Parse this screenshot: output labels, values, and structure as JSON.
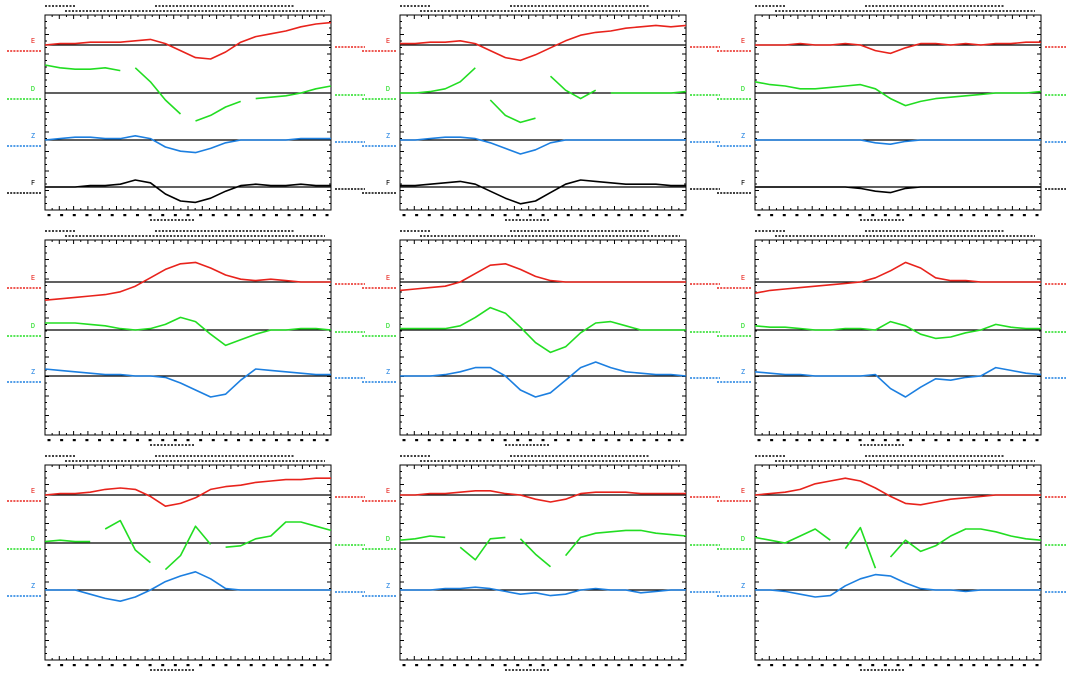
{
  "figure": {
    "background": "#ffffff",
    "colors": {
      "E": "#e8231c",
      "D": "#22dd22",
      "Z": "#1c7fe0",
      "F": "#000000"
    }
  },
  "chart_data": [
    {
      "type": "line",
      "series": [
        {
          "name": "E",
          "baseline": 0,
          "y": [
            0.0,
            0.1,
            0.1,
            0.2,
            0.2,
            0.2,
            0.3,
            0.4,
            0.1,
            -0.4,
            -0.9,
            -1.0,
            -0.5,
            0.2,
            0.6,
            0.8,
            1.0,
            1.3,
            1.5,
            1.6
          ]
        },
        {
          "name": "D",
          "baseline": 0,
          "gaps": [
            6,
            10,
            14
          ],
          "y": [
            2.0,
            1.8,
            1.7,
            1.7,
            1.8,
            1.6,
            1.8,
            0.8,
            -0.5,
            -1.5,
            -2.0,
            -1.6,
            -1.0,
            -0.6,
            -0.4,
            -0.3,
            -0.2,
            0.0,
            0.3,
            0.5
          ]
        },
        {
          "name": "Z",
          "baseline": 0,
          "y": [
            0.0,
            0.1,
            0.2,
            0.2,
            0.1,
            0.1,
            0.3,
            0.1,
            -0.5,
            -0.8,
            -0.9,
            -0.6,
            -0.2,
            0.0,
            0.0,
            0.0,
            0.0,
            0.1,
            0.1,
            0.1
          ]
        },
        {
          "name": "F",
          "baseline": 0,
          "y": [
            0.0,
            0.0,
            0.0,
            0.1,
            0.1,
            0.2,
            0.5,
            0.3,
            -0.5,
            -1.0,
            -1.1,
            -0.8,
            -0.3,
            0.1,
            0.2,
            0.1,
            0.1,
            0.2,
            0.1,
            0.1
          ]
        }
      ]
    },
    {
      "type": "line",
      "series": [
        {
          "name": "E",
          "baseline": 0,
          "y": [
            0.1,
            0.1,
            0.2,
            0.2,
            0.3,
            0.1,
            -0.4,
            -0.9,
            -1.1,
            -0.7,
            -0.2,
            0.3,
            0.7,
            0.9,
            1.0,
            1.2,
            1.3,
            1.4,
            1.3,
            1.4
          ]
        },
        {
          "name": "D",
          "baseline": 0,
          "gaps": [
            6,
            10,
            14
          ],
          "y": [
            0.0,
            0.0,
            0.1,
            0.3,
            0.8,
            1.8,
            -0.5,
            -1.6,
            -2.1,
            -1.8,
            1.2,
            0.2,
            -0.4,
            0.2,
            0.0,
            0.0,
            0.0,
            0.0,
            0.0,
            0.1
          ]
        },
        {
          "name": "Z",
          "baseline": 0,
          "y": [
            0.0,
            0.0,
            0.1,
            0.2,
            0.2,
            0.1,
            -0.2,
            -0.6,
            -1.0,
            -0.7,
            -0.2,
            0.0,
            0.0,
            0.0,
            0.0,
            0.0,
            0.0,
            0.0,
            0.0,
            0.0
          ]
        },
        {
          "name": "F",
          "baseline": 0,
          "y": [
            0.1,
            0.1,
            0.2,
            0.3,
            0.4,
            0.2,
            -0.3,
            -0.8,
            -1.2,
            -1.0,
            -0.4,
            0.2,
            0.5,
            0.4,
            0.3,
            0.2,
            0.2,
            0.2,
            0.1,
            0.1
          ]
        }
      ]
    },
    {
      "type": "line",
      "series": [
        {
          "name": "E",
          "baseline": 0,
          "y": [
            0.0,
            0.0,
            0.0,
            0.1,
            0.0,
            0.0,
            0.1,
            0.0,
            -0.4,
            -0.6,
            -0.2,
            0.1,
            0.1,
            0.0,
            0.1,
            0.0,
            0.1,
            0.1,
            0.2,
            0.2
          ]
        },
        {
          "name": "D",
          "baseline": 0,
          "y": [
            0.8,
            0.6,
            0.5,
            0.3,
            0.3,
            0.4,
            0.5,
            0.6,
            0.3,
            -0.4,
            -0.9,
            -0.6,
            -0.4,
            -0.3,
            -0.2,
            -0.1,
            0.0,
            0.0,
            0.0,
            0.1
          ]
        },
        {
          "name": "Z",
          "baseline": 0,
          "y": [
            0.0,
            0.0,
            0.0,
            0.0,
            0.0,
            0.0,
            0.0,
            0.0,
            -0.2,
            -0.3,
            -0.1,
            0.0,
            0.0,
            0.0,
            0.0,
            0.0,
            0.0,
            0.0,
            0.0,
            0.0
          ]
        },
        {
          "name": "F",
          "baseline": 0,
          "y": [
            0.0,
            0.0,
            0.0,
            0.0,
            0.0,
            0.0,
            0.0,
            -0.1,
            -0.3,
            -0.4,
            -0.1,
            0.0,
            0.0,
            0.0,
            0.0,
            0.0,
            0.0,
            0.0,
            0.0,
            0.0
          ]
        }
      ]
    },
    {
      "type": "line",
      "series": [
        {
          "name": "E",
          "baseline": 0,
          "y": [
            -1.3,
            -1.2,
            -1.1,
            -1.0,
            -0.9,
            -0.7,
            -0.3,
            0.3,
            0.9,
            1.3,
            1.4,
            1.0,
            0.5,
            0.2,
            0.1,
            0.2,
            0.1,
            0.0,
            0.0,
            0.0
          ]
        },
        {
          "name": "D",
          "baseline": 0,
          "y": [
            0.5,
            0.5,
            0.5,
            0.4,
            0.3,
            0.1,
            0.0,
            0.1,
            0.4,
            0.9,
            0.6,
            -0.3,
            -1.1,
            -0.7,
            -0.3,
            0.0,
            0.0,
            0.1,
            0.1,
            0.0
          ]
        },
        {
          "name": "Z",
          "baseline": 0,
          "y": [
            0.5,
            0.4,
            0.3,
            0.2,
            0.1,
            0.1,
            0.0,
            0.0,
            -0.1,
            -0.5,
            -1.0,
            -1.5,
            -1.3,
            -0.3,
            0.5,
            0.4,
            0.3,
            0.2,
            0.1,
            0.1
          ]
        }
      ]
    },
    {
      "type": "line",
      "series": [
        {
          "name": "E",
          "baseline": 0,
          "y": [
            -0.6,
            -0.5,
            -0.4,
            -0.3,
            0.0,
            0.6,
            1.2,
            1.3,
            0.9,
            0.4,
            0.1,
            0.0,
            0.0,
            0.0,
            0.0,
            0.0,
            0.0,
            0.0,
            0.0,
            0.0
          ]
        },
        {
          "name": "D",
          "baseline": 0,
          "y": [
            0.1,
            0.1,
            0.1,
            0.1,
            0.3,
            0.9,
            1.6,
            1.2,
            0.2,
            -0.9,
            -1.6,
            -1.2,
            -0.2,
            0.5,
            0.6,
            0.3,
            0.0,
            0.0,
            0.0,
            0.0
          ]
        },
        {
          "name": "Z",
          "baseline": 0,
          "y": [
            0.0,
            0.0,
            0.0,
            0.1,
            0.3,
            0.6,
            0.6,
            0.0,
            -1.0,
            -1.5,
            -1.2,
            -0.3,
            0.6,
            1.0,
            0.6,
            0.3,
            0.2,
            0.1,
            0.1,
            0.0
          ]
        }
      ]
    },
    {
      "type": "line",
      "series": [
        {
          "name": "E",
          "baseline": 0,
          "y": [
            -0.8,
            -0.6,
            -0.5,
            -0.4,
            -0.3,
            -0.2,
            -0.1,
            0.0,
            0.3,
            0.8,
            1.4,
            1.0,
            0.3,
            0.1,
            0.1,
            0.0,
            0.0,
            0.0,
            0.0,
            0.0
          ]
        },
        {
          "name": "D",
          "baseline": 0,
          "y": [
            0.3,
            0.2,
            0.2,
            0.1,
            0.0,
            0.0,
            0.1,
            0.1,
            0.0,
            0.6,
            0.3,
            -0.3,
            -0.6,
            -0.5,
            -0.2,
            0.0,
            0.4,
            0.2,
            0.1,
            0.1
          ]
        },
        {
          "name": "Z",
          "baseline": 0,
          "y": [
            0.3,
            0.2,
            0.1,
            0.1,
            0.0,
            0.0,
            0.0,
            0.0,
            0.1,
            -0.9,
            -1.5,
            -0.8,
            -0.2,
            -0.3,
            -0.1,
            0.0,
            0.6,
            0.4,
            0.2,
            0.1
          ]
        }
      ]
    },
    {
      "type": "line",
      "series": [
        {
          "name": "E",
          "baseline": 0,
          "y": [
            0.0,
            0.1,
            0.1,
            0.2,
            0.4,
            0.5,
            0.4,
            -0.1,
            -0.8,
            -0.6,
            -0.2,
            0.4,
            0.6,
            0.7,
            0.9,
            1.0,
            1.1,
            1.1,
            1.2,
            1.2
          ]
        },
        {
          "name": "D",
          "baseline": 0,
          "gaps": [
            4,
            8,
            12
          ],
          "y": [
            0.1,
            0.2,
            0.1,
            0.1,
            1.0,
            1.6,
            -0.5,
            -1.4,
            -1.9,
            -0.9,
            1.2,
            -0.1,
            -0.3,
            -0.2,
            0.3,
            0.5,
            1.5,
            1.5,
            1.2,
            0.9
          ]
        },
        {
          "name": "Z",
          "baseline": 0,
          "y": [
            0.0,
            0.0,
            0.0,
            -0.3,
            -0.6,
            -0.8,
            -0.5,
            0.0,
            0.6,
            1.0,
            1.3,
            0.8,
            0.1,
            0.0,
            0.0,
            0.0,
            0.0,
            0.0,
            0.0,
            0.0
          ]
        }
      ]
    },
    {
      "type": "line",
      "series": [
        {
          "name": "E",
          "baseline": 0,
          "y": [
            0.0,
            0.0,
            0.1,
            0.1,
            0.2,
            0.3,
            0.3,
            0.1,
            0.0,
            -0.3,
            -0.5,
            -0.3,
            0.1,
            0.2,
            0.2,
            0.2,
            0.1,
            0.1,
            0.1,
            0.1
          ]
        },
        {
          "name": "D",
          "baseline": 0,
          "gaps": [
            4,
            8,
            11
          ],
          "y": [
            0.2,
            0.3,
            0.5,
            0.4,
            -0.3,
            -1.2,
            0.3,
            0.4,
            0.3,
            -0.8,
            -1.7,
            -0.9,
            0.4,
            0.7,
            0.8,
            0.9,
            0.9,
            0.7,
            0.6,
            0.5
          ]
        },
        {
          "name": "Z",
          "baseline": 0,
          "y": [
            0.0,
            0.0,
            0.0,
            0.1,
            0.1,
            0.2,
            0.1,
            -0.1,
            -0.3,
            -0.2,
            -0.4,
            -0.3,
            0.0,
            0.1,
            0.0,
            0.0,
            -0.2,
            -0.1,
            0.0,
            0.0
          ]
        }
      ]
    },
    {
      "type": "line",
      "series": [
        {
          "name": "E",
          "baseline": 0,
          "y": [
            0.0,
            0.1,
            0.2,
            0.4,
            0.8,
            1.0,
            1.2,
            1.0,
            0.5,
            -0.1,
            -0.6,
            -0.7,
            -0.5,
            -0.3,
            -0.2,
            -0.1,
            0.0,
            0.0,
            0.0,
            0.0
          ]
        },
        {
          "name": "D",
          "baseline": 0,
          "gaps": [
            6,
            9
          ],
          "y": [
            0.4,
            0.2,
            0.0,
            0.5,
            1.0,
            0.2,
            -0.4,
            1.1,
            -1.8,
            -1.0,
            0.2,
            -0.6,
            -0.2,
            0.5,
            1.0,
            1.0,
            0.8,
            0.5,
            0.3,
            0.2
          ]
        },
        {
          "name": "Z",
          "baseline": 0,
          "y": [
            0.0,
            0.0,
            -0.1,
            -0.3,
            -0.5,
            -0.4,
            0.3,
            0.8,
            1.1,
            1.0,
            0.5,
            0.1,
            0.0,
            0.0,
            -0.1,
            0.0,
            0.0,
            0.0,
            0.0,
            0.0
          ]
        }
      ]
    }
  ]
}
